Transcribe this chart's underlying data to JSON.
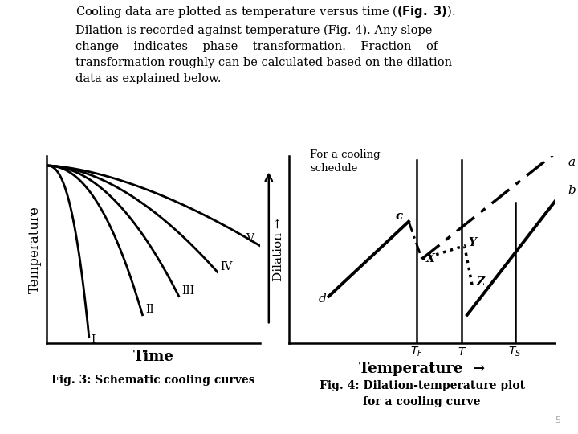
{
  "bg_color": "#ffffff",
  "font_color": "#000000",
  "fig3_caption": "Fig. 3: Schematic cooling curves",
  "fig4_caption_line1": "Fig. 4: Dilation-temperature plot",
  "fig4_caption_line2": "for a cooling curve",
  "page_number": "5",
  "fig3_ylabel": "Temperature",
  "fig3_xlabel": "Time",
  "fig4_ylabel": "Dilation →",
  "fig4_xlabel": "Temperature →",
  "fig4_annotation": "For a cooling\nschedule",
  "curve_labels": [
    "I",
    "II",
    "III",
    "IV",
    "V"
  ],
  "dilation_labels": [
    "a",
    "b",
    "c",
    "d",
    "X",
    "Y",
    "Z"
  ],
  "xtick_labels": [
    "$T_F$",
    "$T$",
    "$T_S$"
  ]
}
